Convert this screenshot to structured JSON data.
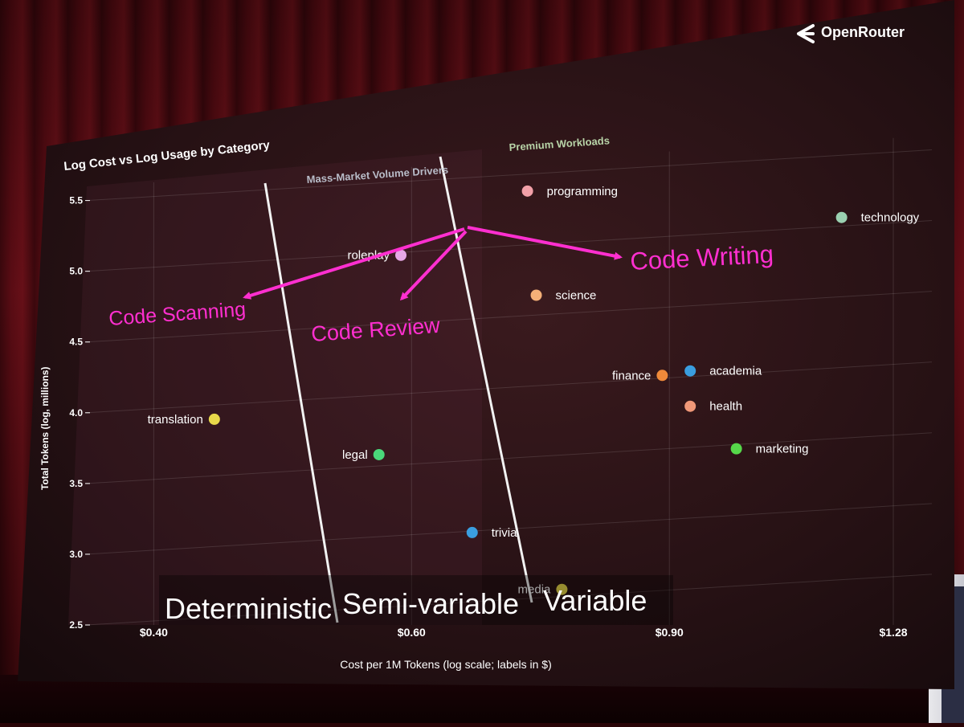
{
  "brand": {
    "logo_icon": "openrouter-logo-icon",
    "name": "OpenRouter"
  },
  "colors": {
    "annotation": "#ff2fd0",
    "divider": "#f2f2f2",
    "screen_bg": "#1e1012"
  },
  "annotations": {
    "code_writing": "Code Writing",
    "code_scanning": "Code Scanning",
    "code_review": "Code Review"
  },
  "zone_labels": {
    "deterministic": "Deterministic",
    "semi_variable": "Semi-variable",
    "variable": "Variable"
  },
  "chart_data": {
    "type": "scatter",
    "title": "Log Cost vs Log Usage by Category",
    "xlabel": "Cost per 1M Tokens (log scale; labels in $)",
    "ylabel": "Total Tokens (log, millions)",
    "x_scale": "log",
    "xlim": [
      0.36,
      1.36
    ],
    "ylim": [
      2.5,
      5.6
    ],
    "x_ticks": [
      {
        "value": 0.4,
        "label": "$0.40"
      },
      {
        "value": 0.6,
        "label": "$0.60"
      },
      {
        "value": 0.9,
        "label": "$0.90"
      },
      {
        "value": 1.28,
        "label": "$1.28"
      }
    ],
    "y_ticks": [
      {
        "value": 2.5,
        "label": "2.5"
      },
      {
        "value": 3.0,
        "label": "3.0"
      },
      {
        "value": 3.5,
        "label": "3.5"
      },
      {
        "value": 4.0,
        "label": "4.0"
      },
      {
        "value": 4.5,
        "label": "4.5"
      },
      {
        "value": 5.0,
        "label": "5.0"
      },
      {
        "value": 5.5,
        "label": "5.5"
      }
    ],
    "grid": true,
    "region_labels": [
      "Mass-Market Volume Drivers",
      "Premium Workloads"
    ],
    "points": [
      {
        "label": "programming",
        "x": 0.72,
        "y": 5.38,
        "color": "#f2a0a8",
        "label_side": "right"
      },
      {
        "label": "technology",
        "x": 1.18,
        "y": 5.06,
        "color": "#9ad0b0",
        "label_side": "right"
      },
      {
        "label": "roleplay",
        "x": 0.59,
        "y": 4.98,
        "color": "#e6a8e6",
        "label_side": "left"
      },
      {
        "label": "science",
        "x": 0.73,
        "y": 4.64,
        "color": "#f4b078",
        "label_side": "right"
      },
      {
        "label": "academia",
        "x": 0.93,
        "y": 4.04,
        "color": "#3a9ee0",
        "label_side": "right"
      },
      {
        "label": "finance",
        "x": 0.89,
        "y": 4.02,
        "color": "#f08a3a",
        "label_side": "left"
      },
      {
        "label": "translation",
        "x": 0.44,
        "y": 3.9,
        "color": "#e8d84a",
        "label_side": "left"
      },
      {
        "label": "health",
        "x": 0.93,
        "y": 3.79,
        "color": "#f09878",
        "label_side": "right"
      },
      {
        "label": "legal",
        "x": 0.57,
        "y": 3.58,
        "color": "#4ad87a",
        "label_side": "left"
      },
      {
        "label": "marketing",
        "x": 1.0,
        "y": 3.47,
        "color": "#56d84a",
        "label_side": "right"
      },
      {
        "label": "trivia",
        "x": 0.66,
        "y": 2.99,
        "color": "#3a9ee0",
        "label_side": "right"
      },
      {
        "label": "media",
        "x": 0.76,
        "y": 2.55,
        "color": "#e8d84a",
        "label_side": "left"
      }
    ]
  }
}
